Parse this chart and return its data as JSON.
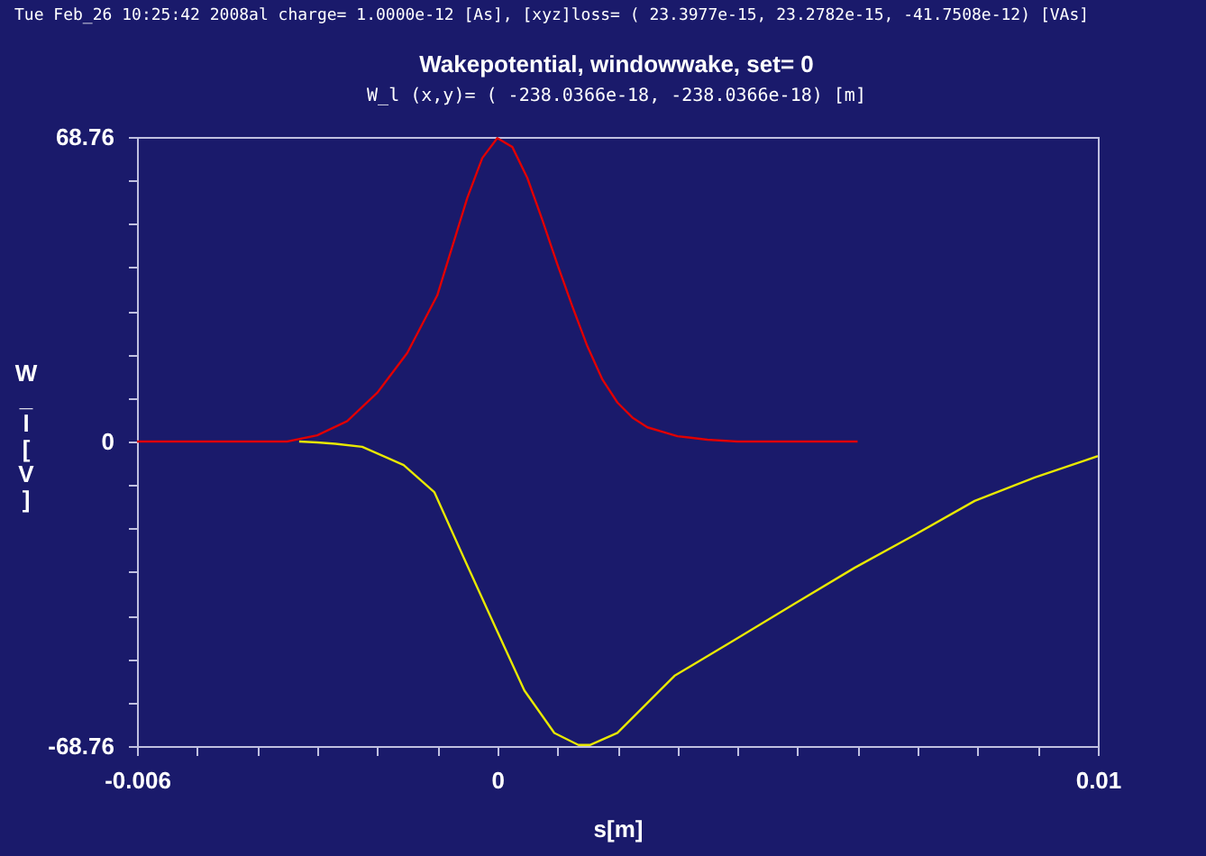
{
  "chart_data": {
    "type": "line",
    "title": "Wakepotential, windowwake, set= 0",
    "subtitle": "W_l (x,y)= ( -238.0366e-18, -238.0366e-18) [m]",
    "xlabel": "s[m]",
    "ylabel": "W_l [V]",
    "annotations": [
      "Tue Feb_26 10:25:42 2008al charge= 1.0000e-12 [As], [xyz]loss= ( 23.3977e-15, 23.2782e-15, -41.7508e-12) [VAs]"
    ],
    "series": [
      {
        "color": "#e00000",
        "x": [
          -0.006,
          -0.0035,
          -0.003,
          -0.0025,
          -0.002,
          -0.0015,
          -0.001,
          -0.0005,
          -0.00025,
          0,
          0.00025,
          0.0005,
          0.00075,
          0.001,
          0.00125,
          0.0015,
          0.00175,
          0.002,
          0.00225,
          0.0025,
          0.003,
          0.0035,
          0.004,
          0.006
        ],
        "values": [
          0,
          0,
          1.4,
          4.6,
          11,
          20,
          33,
          55,
          64,
          68.5,
          66.5,
          59.5,
          50,
          40,
          30.5,
          21.5,
          14,
          8.8,
          5.4,
          3.2,
          1.2,
          0.4,
          0,
          0
        ]
      },
      {
        "color": "#e8e800",
        "x": [
          -0.0033,
          -0.003,
          -0.0027,
          -0.00225,
          -0.00156,
          -0.00105,
          -0.00055,
          -5e-05,
          0.00045,
          0.00095,
          0.00135,
          0.00155,
          0.002,
          0.00295,
          0.00395,
          0.00495,
          0.00595,
          0.00696,
          0.00795,
          0.00895,
          0.01
        ],
        "values": [
          0,
          -0.2,
          -0.5,
          -1.2,
          -5.3,
          -11.4,
          -26.5,
          -41.4,
          -56.2,
          -65.8,
          -68.5,
          -68.5,
          -65.8,
          -52.9,
          -44.8,
          -36.6,
          -28.5,
          -21,
          -13.4,
          -8.1,
          -3.3
        ]
      }
    ],
    "xlim": [
      -0.006,
      0.01
    ],
    "xticks": [
      -0.006,
      {
        "value": -0.005,
        "label": null
      },
      {
        "value": -0.004,
        "label": null
      },
      {
        "value": -0.003,
        "label": null
      },
      {
        "value": -0.002,
        "label": null
      },
      {
        "value": -0.001,
        "label": null
      },
      0,
      {
        "value": 0.001,
        "label": null
      },
      {
        "value": 0.002,
        "label": null
      },
      {
        "value": 0.003,
        "label": null
      },
      {
        "value": 0.004,
        "label": null
      },
      {
        "value": 0.005,
        "label": null
      },
      {
        "value": 0.006,
        "label": null
      },
      {
        "value": 0.007,
        "label": null
      },
      {
        "value": 0.008,
        "label": null
      },
      {
        "value": 0.009,
        "label": null
      },
      0.01
    ],
    "ylim": [
      -68.76,
      68.76
    ],
    "yticks": [
      -68.76,
      {
        "value": -58.94,
        "label": null
      },
      {
        "value": -49.11,
        "label": null
      },
      {
        "value": -39.29,
        "label": null
      },
      {
        "value": -29.47,
        "label": null
      },
      {
        "value": -19.65,
        "label": null
      },
      {
        "value": -9.82,
        "label": null
      },
      0,
      {
        "value": 9.82,
        "label": null
      },
      {
        "value": 19.65,
        "label": null
      },
      {
        "value": 29.47,
        "label": null
      },
      {
        "value": 39.29,
        "label": null
      },
      {
        "value": 49.11,
        "label": null
      },
      {
        "value": 58.94,
        "label": null
      },
      68.76
    ],
    "grid": false,
    "marker": "none",
    "line_style": "solid"
  }
}
